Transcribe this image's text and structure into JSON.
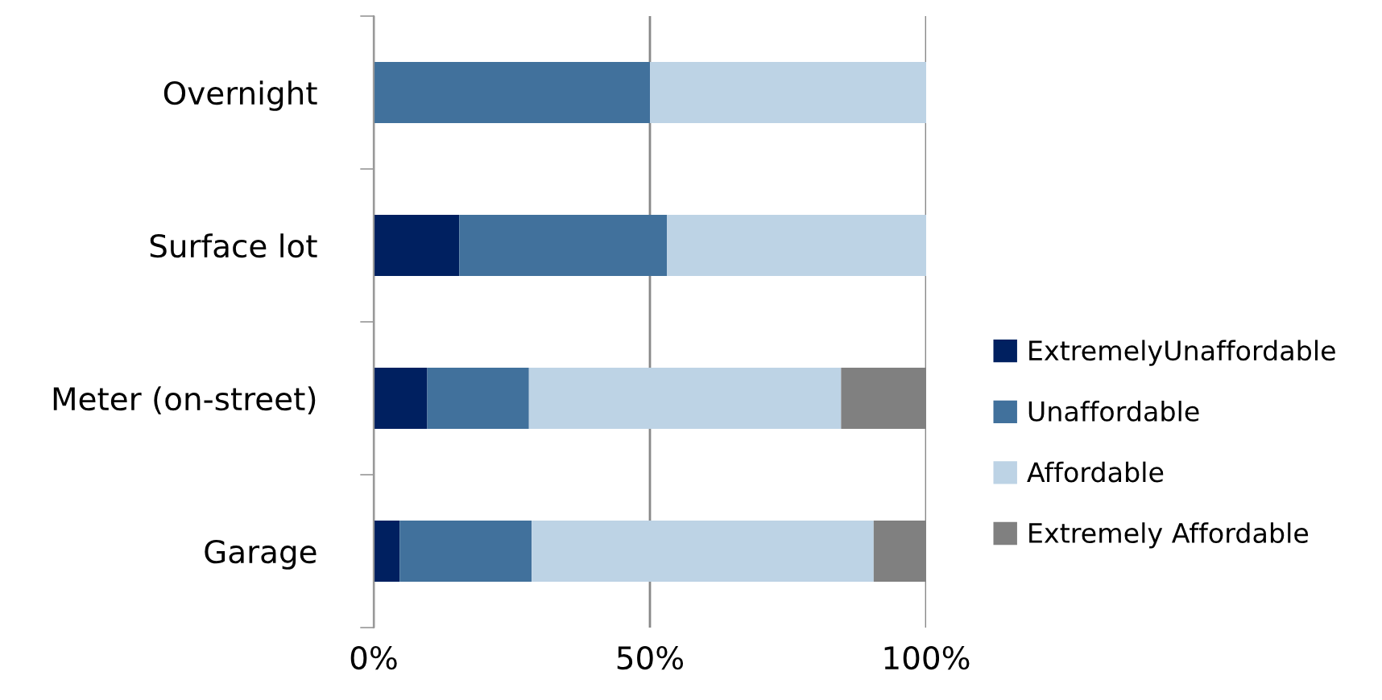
{
  "chart_data": {
    "type": "bar",
    "orientation": "horizontal",
    "stacked": true,
    "categories": [
      "Overnight",
      "Surface lot",
      "Meter (on-street)",
      "Garage"
    ],
    "series": [
      {
        "name": "ExtremelyUnaffordable",
        "color": "#002060",
        "values": [
          0,
          15.5,
          9.7,
          4.7
        ]
      },
      {
        "name": "Unaffordable",
        "color": "#41719c",
        "values": [
          50,
          37.6,
          18.4,
          23.9
        ]
      },
      {
        "name": "Affordable",
        "color": "#bdd3e5",
        "values": [
          50,
          46.9,
          56.5,
          61.9
        ]
      },
      {
        "name": "Extremely Affordable",
        "color": "#808080",
        "values": [
          0,
          0,
          15.4,
          9.5
        ]
      }
    ],
    "xlim": [
      0,
      100
    ],
    "xticks": [
      {
        "value": 0,
        "label": "0%"
      },
      {
        "value": 50,
        "label": "50%"
      },
      {
        "value": 100,
        "label": "100%"
      }
    ],
    "grid": "x",
    "legend": "right"
  }
}
